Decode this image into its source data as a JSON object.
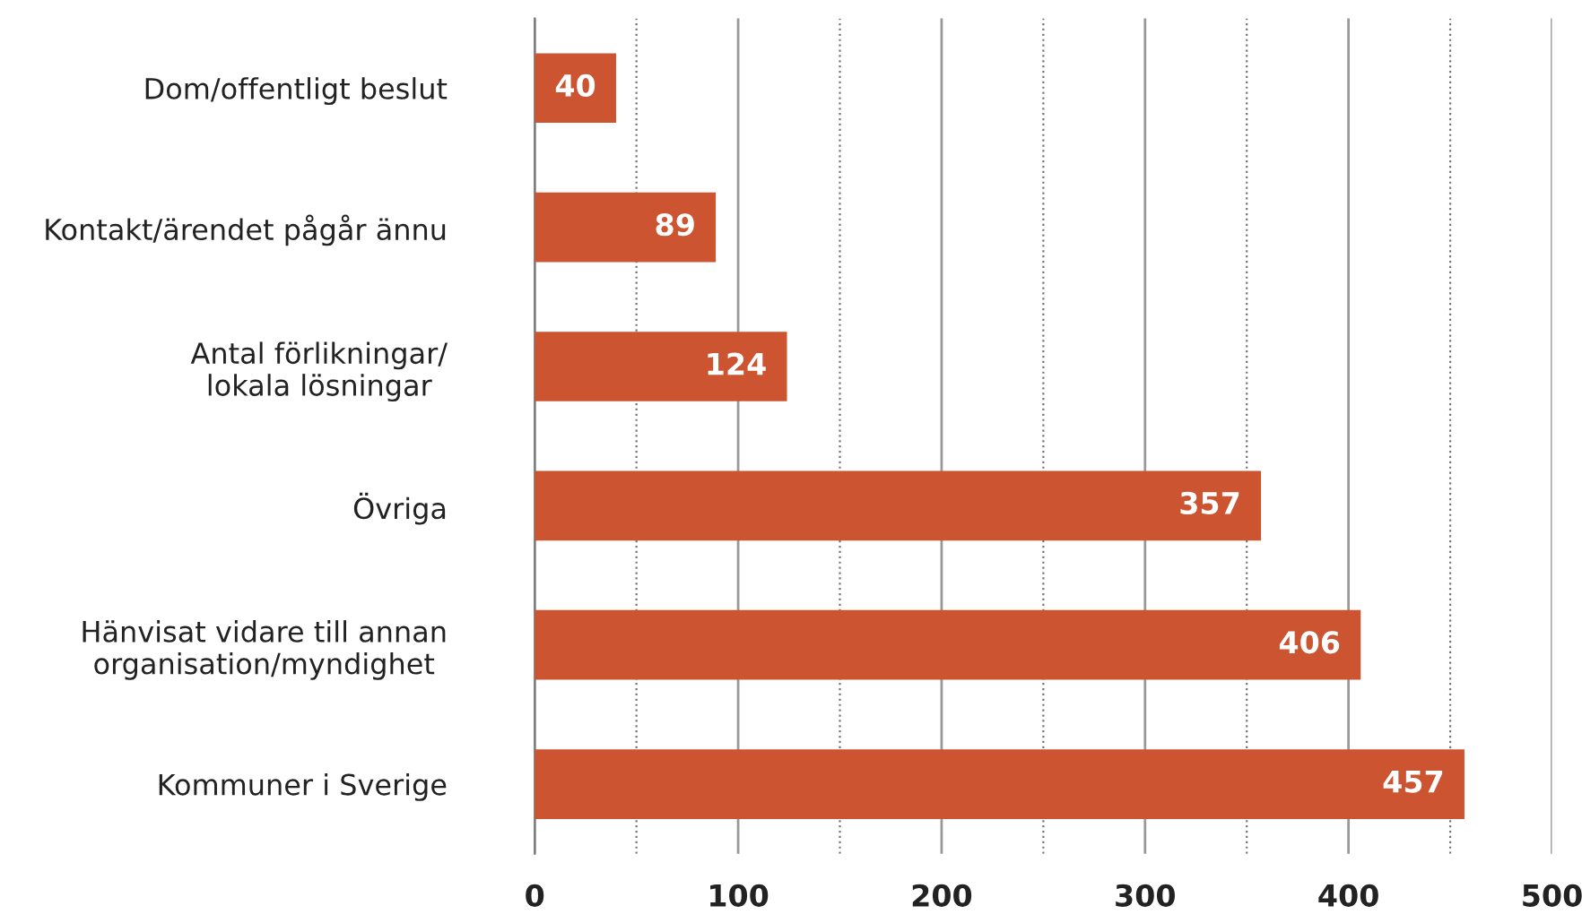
{
  "chart_data": {
    "type": "bar",
    "orientation": "horizontal",
    "categories": [
      "Dom/offentligt beslut",
      "Kontakt/ärendet pågår ännu",
      "Antal förlikningar/\nlokala lösningar",
      "Övriga",
      "Hänvisat vidare till annan\norganisation/myndighet",
      "Kommuner i Sverige"
    ],
    "values": [
      40,
      89,
      124,
      357,
      406,
      457
    ],
    "color": "#cc5430",
    "xlim": [
      0,
      500
    ],
    "xticks": [
      0,
      {
        "value": 50,
        "label": null
      },
      100,
      {
        "value": 150,
        "label": null
      },
      200,
      {
        "value": 250,
        "label": null
      },
      300,
      {
        "value": 350,
        "label": null
      },
      400,
      {
        "value": 450,
        "label": null
      },
      500
    ],
    "grid": "x",
    "data_labels": true
  }
}
